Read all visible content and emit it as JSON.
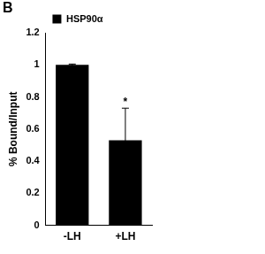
{
  "chart_data": {
    "type": "bar",
    "title": "B",
    "y_label": "% Bound/Input",
    "categories": [
      "-LH",
      "+LH"
    ],
    "series": [
      {
        "name": "HSP90α",
        "color": "#000000",
        "values": [
          1.0,
          0.53
        ],
        "errors": [
          0.005,
          0.2
        ]
      }
    ],
    "ylim": [
      0,
      1.2
    ],
    "yticks": [
      0,
      0.2,
      0.4,
      0.6,
      0.8,
      1,
      1.2
    ],
    "legend": "top",
    "grid": false,
    "annotations": [
      {
        "text": "*",
        "category": "+LH"
      }
    ]
  }
}
